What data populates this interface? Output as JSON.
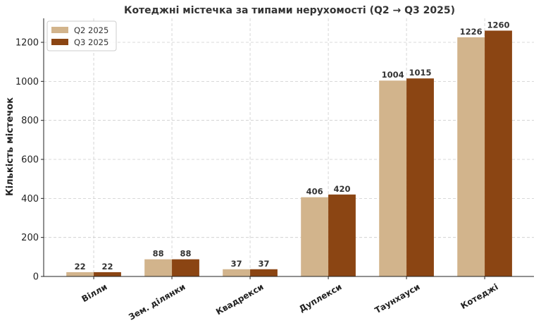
{
  "chart_data": {
    "type": "bar",
    "title": "Котеджні містечка за типами нерухомості (Q2 → Q3 2025)",
    "xlabel": "",
    "ylabel": "Кількість містечок",
    "categories": [
      "Вілли",
      "Зем. ділянки",
      "Квадрекси",
      "Дуплекси",
      "Таунхауси",
      "Котеджі"
    ],
    "series": [
      {
        "name": "Q2 2025",
        "color": "#D2B48C",
        "values": [
          22,
          88,
          37,
          406,
          1004,
          1226
        ]
      },
      {
        "name": "Q3 2025",
        "color": "#8B4513",
        "values": [
          22,
          88,
          37,
          420,
          1015,
          1260
        ]
      }
    ],
    "ylim": [
      0,
      1323
    ],
    "yticks": [
      0,
      200,
      400,
      600,
      800,
      1000,
      1200
    ],
    "grid": true,
    "legend": "top-left"
  }
}
